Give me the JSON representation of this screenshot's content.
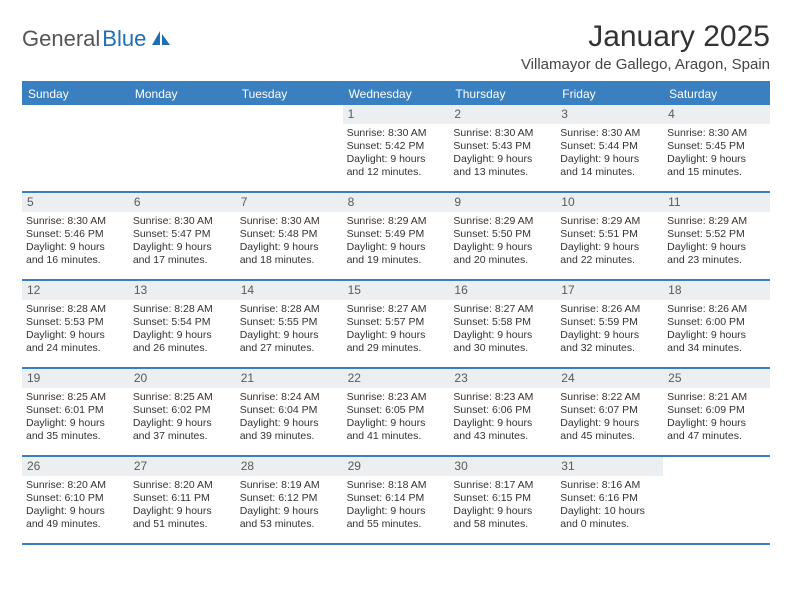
{
  "brand": {
    "part1": "General",
    "part2": "Blue"
  },
  "title": "January 2025",
  "location": "Villamayor de Gallego, Aragon, Spain",
  "colors": {
    "accent": "#3a7fbf",
    "dayBar": "#eceff1",
    "text": "#333333",
    "logoBlue": "#1f6fb2"
  },
  "weekdays": [
    "Sunday",
    "Monday",
    "Tuesday",
    "Wednesday",
    "Thursday",
    "Friday",
    "Saturday"
  ],
  "weeks": [
    [
      null,
      null,
      null,
      {
        "n": "1",
        "sunrise": "8:30 AM",
        "sunset": "5:42 PM",
        "dayH": "9",
        "dayM": "12"
      },
      {
        "n": "2",
        "sunrise": "8:30 AM",
        "sunset": "5:43 PM",
        "dayH": "9",
        "dayM": "13"
      },
      {
        "n": "3",
        "sunrise": "8:30 AM",
        "sunset": "5:44 PM",
        "dayH": "9",
        "dayM": "14"
      },
      {
        "n": "4",
        "sunrise": "8:30 AM",
        "sunset": "5:45 PM",
        "dayH": "9",
        "dayM": "15"
      }
    ],
    [
      {
        "n": "5",
        "sunrise": "8:30 AM",
        "sunset": "5:46 PM",
        "dayH": "9",
        "dayM": "16"
      },
      {
        "n": "6",
        "sunrise": "8:30 AM",
        "sunset": "5:47 PM",
        "dayH": "9",
        "dayM": "17"
      },
      {
        "n": "7",
        "sunrise": "8:30 AM",
        "sunset": "5:48 PM",
        "dayH": "9",
        "dayM": "18"
      },
      {
        "n": "8",
        "sunrise": "8:29 AM",
        "sunset": "5:49 PM",
        "dayH": "9",
        "dayM": "19"
      },
      {
        "n": "9",
        "sunrise": "8:29 AM",
        "sunset": "5:50 PM",
        "dayH": "9",
        "dayM": "20"
      },
      {
        "n": "10",
        "sunrise": "8:29 AM",
        "sunset": "5:51 PM",
        "dayH": "9",
        "dayM": "22"
      },
      {
        "n": "11",
        "sunrise": "8:29 AM",
        "sunset": "5:52 PM",
        "dayH": "9",
        "dayM": "23"
      }
    ],
    [
      {
        "n": "12",
        "sunrise": "8:28 AM",
        "sunset": "5:53 PM",
        "dayH": "9",
        "dayM": "24"
      },
      {
        "n": "13",
        "sunrise": "8:28 AM",
        "sunset": "5:54 PM",
        "dayH": "9",
        "dayM": "26"
      },
      {
        "n": "14",
        "sunrise": "8:28 AM",
        "sunset": "5:55 PM",
        "dayH": "9",
        "dayM": "27"
      },
      {
        "n": "15",
        "sunrise": "8:27 AM",
        "sunset": "5:57 PM",
        "dayH": "9",
        "dayM": "29"
      },
      {
        "n": "16",
        "sunrise": "8:27 AM",
        "sunset": "5:58 PM",
        "dayH": "9",
        "dayM": "30"
      },
      {
        "n": "17",
        "sunrise": "8:26 AM",
        "sunset": "5:59 PM",
        "dayH": "9",
        "dayM": "32"
      },
      {
        "n": "18",
        "sunrise": "8:26 AM",
        "sunset": "6:00 PM",
        "dayH": "9",
        "dayM": "34"
      }
    ],
    [
      {
        "n": "19",
        "sunrise": "8:25 AM",
        "sunset": "6:01 PM",
        "dayH": "9",
        "dayM": "35"
      },
      {
        "n": "20",
        "sunrise": "8:25 AM",
        "sunset": "6:02 PM",
        "dayH": "9",
        "dayM": "37"
      },
      {
        "n": "21",
        "sunrise": "8:24 AM",
        "sunset": "6:04 PM",
        "dayH": "9",
        "dayM": "39"
      },
      {
        "n": "22",
        "sunrise": "8:23 AM",
        "sunset": "6:05 PM",
        "dayH": "9",
        "dayM": "41"
      },
      {
        "n": "23",
        "sunrise": "8:23 AM",
        "sunset": "6:06 PM",
        "dayH": "9",
        "dayM": "43"
      },
      {
        "n": "24",
        "sunrise": "8:22 AM",
        "sunset": "6:07 PM",
        "dayH": "9",
        "dayM": "45"
      },
      {
        "n": "25",
        "sunrise": "8:21 AM",
        "sunset": "6:09 PM",
        "dayH": "9",
        "dayM": "47"
      }
    ],
    [
      {
        "n": "26",
        "sunrise": "8:20 AM",
        "sunset": "6:10 PM",
        "dayH": "9",
        "dayM": "49"
      },
      {
        "n": "27",
        "sunrise": "8:20 AM",
        "sunset": "6:11 PM",
        "dayH": "9",
        "dayM": "51"
      },
      {
        "n": "28",
        "sunrise": "8:19 AM",
        "sunset": "6:12 PM",
        "dayH": "9",
        "dayM": "53"
      },
      {
        "n": "29",
        "sunrise": "8:18 AM",
        "sunset": "6:14 PM",
        "dayH": "9",
        "dayM": "55"
      },
      {
        "n": "30",
        "sunrise": "8:17 AM",
        "sunset": "6:15 PM",
        "dayH": "9",
        "dayM": "58"
      },
      {
        "n": "31",
        "sunrise": "8:16 AM",
        "sunset": "6:16 PM",
        "dayH": "10",
        "dayM": "0"
      },
      null
    ]
  ]
}
